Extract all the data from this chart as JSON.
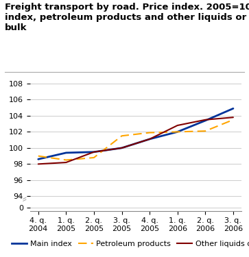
{
  "title_line1": "Freight transport by road. Price index. 2005=100. Main",
  "title_line2": "index, petroleum products and other liquids or gases in",
  "title_line3": "bulk",
  "x_labels": [
    "4. q.\n2004",
    "1. q.\n2005",
    "2. q.\n2005",
    "3. q.\n2005",
    "4. q.\n2005",
    "1. q.\n2006",
    "2. q.\n2006",
    "3. q.\n2006"
  ],
  "main_index": [
    98.6,
    99.4,
    99.5,
    100.0,
    101.1,
    102.0,
    103.4,
    104.9
  ],
  "petroleum_products": [
    99.0,
    98.5,
    98.8,
    101.5,
    101.9,
    102.0,
    102.1,
    103.5
  ],
  "other_liquids_gases": [
    98.0,
    98.2,
    99.5,
    100.0,
    101.1,
    102.8,
    103.5,
    103.8
  ],
  "main_index_color": "#003399",
  "petroleum_color": "#FFA500",
  "other_color": "#800000",
  "background_color": "#ffffff",
  "grid_color": "#cccccc",
  "title_fontsize": 9.5,
  "legend_fontsize": 8,
  "tick_fontsize": 8
}
